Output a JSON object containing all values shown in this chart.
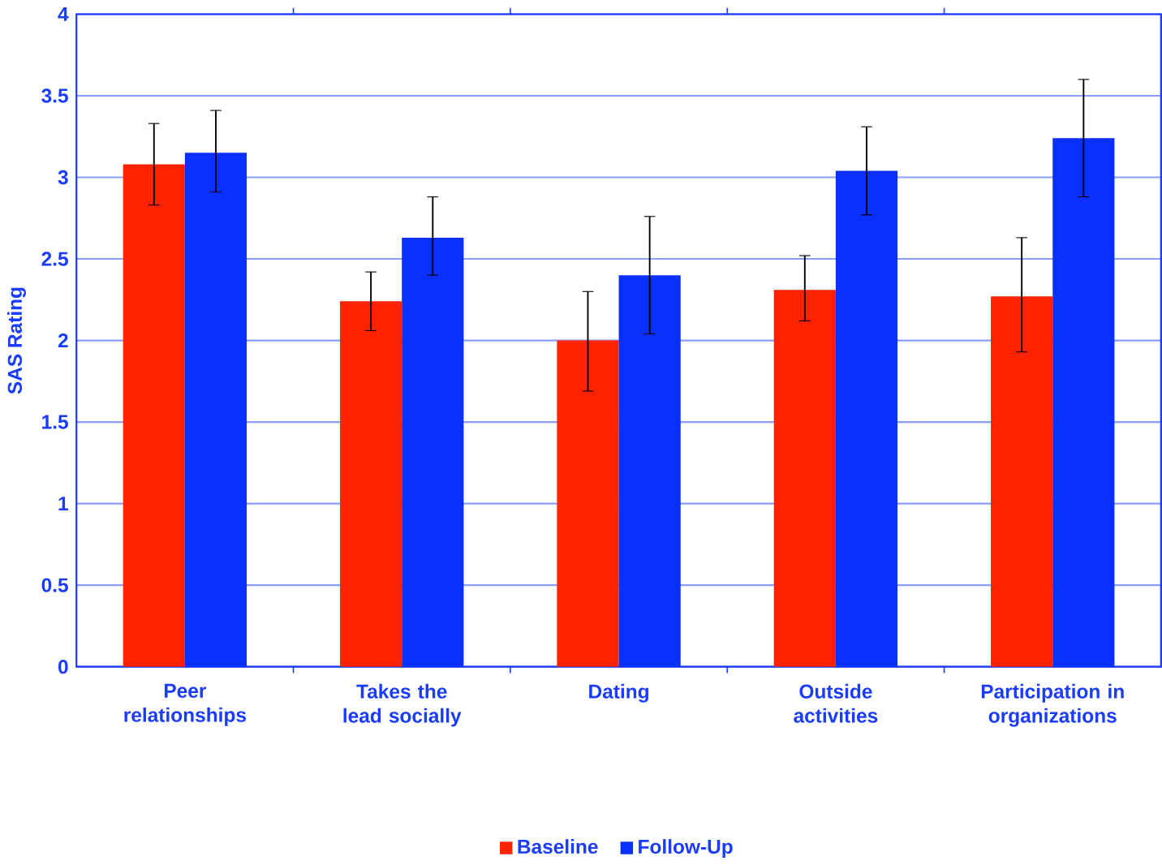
{
  "chart_data": {
    "type": "bar",
    "ylabel": "SAS Rating",
    "categories": [
      "Peer relationships",
      "Takes the lead socially",
      "Dating",
      "Outside activities",
      "Participation in organizations"
    ],
    "series": [
      {
        "name": "Baseline",
        "color": "#ff2200",
        "values": [
          3.08,
          2.24,
          2.0,
          2.31,
          2.27
        ],
        "errors": [
          [
            2.83,
            3.33
          ],
          [
            2.06,
            2.42
          ],
          [
            1.69,
            2.3
          ],
          [
            2.12,
            2.52
          ],
          [
            1.93,
            2.63
          ]
        ]
      },
      {
        "name": "Follow-Up",
        "color": "#0a30ff",
        "values": [
          3.15,
          2.63,
          2.4,
          3.04,
          3.24
        ],
        "errors": [
          [
            2.91,
            3.41
          ],
          [
            2.4,
            2.88
          ],
          [
            2.04,
            2.76
          ],
          [
            2.77,
            3.31
          ],
          [
            2.88,
            3.6
          ]
        ]
      }
    ],
    "ylim": [
      0,
      4
    ],
    "yticks": [
      0,
      0.5,
      1,
      1.5,
      2,
      2.5,
      3,
      3.5,
      4
    ],
    "grid": "y",
    "legend": "bottom"
  }
}
